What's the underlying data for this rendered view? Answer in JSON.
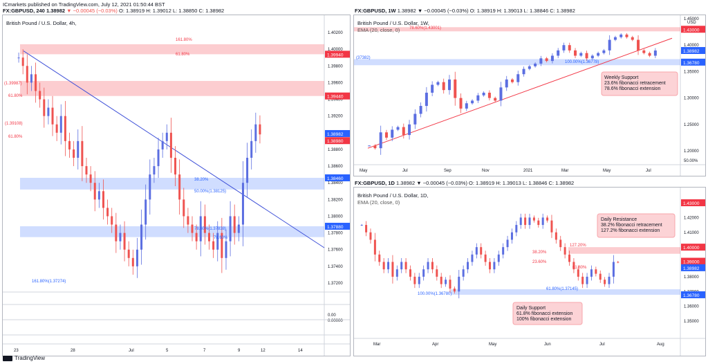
{
  "header": {
    "line1": "ICmarkets published on TradingView.com, July 12, 2021 01:50:44 BST",
    "symbol": "FX:GBPUSD, 240",
    "price": "1.38982",
    "change": "▼ −0.00045 (−0.03%)",
    "ohlc": "O: 1.38919  H: 1.39012  L: 1.38850  C: 1.38982"
  },
  "footer": {
    "brand": "TradingView"
  },
  "chart_data": [
    {
      "type": "candlestick",
      "symbol": "FX:GBPUSD, 240",
      "title": "British Pound / U.S. Dollar, 4h,",
      "currency": "",
      "yaxis_labels": [
        "1.40200",
        "1.40000",
        "1.39800",
        "1.39600",
        "1.39400",
        "1.39200",
        "1.39000",
        "1.38800",
        "1.38600",
        "1.38400",
        "1.38200",
        "1.38000",
        "1.37800",
        "1.37600",
        "1.37400",
        "1.37200",
        "0.00",
        "0.00000"
      ],
      "xaxis_labels": [
        "23",
        "28",
        "Jul",
        "5",
        "7",
        "9",
        "12",
        "14"
      ],
      "price_tags": [
        {
          "text": "1.39940",
          "color": "#f23645"
        },
        {
          "text": "1.39440",
          "color": "#f23645"
        },
        {
          "text": "1.38982",
          "color": "#2962ff"
        },
        {
          "text": "1.38980",
          "color": "#f23645"
        },
        {
          "text": "1.38460",
          "color": "#2962ff"
        },
        {
          "text": "1.37880",
          "color": "#2962ff"
        }
      ],
      "annotations": [
        "161.80%",
        "61.80%",
        "(1.39987)",
        "61.80%",
        "(1.39108)",
        "61.80%",
        "38.20%",
        "50.00%(1.38125)",
        "78.60%(1.37838)",
        "78.60%",
        "161.80%(1.37274)"
      ],
      "zones": [
        {
          "range": [
            1.3994,
            1.4006
          ],
          "kind": "resistance"
        },
        {
          "range": [
            1.3944,
            1.3962
          ],
          "kind": "resistance"
        },
        {
          "range": [
            1.3832,
            1.3846
          ],
          "kind": "support"
        },
        {
          "range": [
            1.3775,
            1.3788
          ],
          "kind": "support"
        }
      ],
      "trendline": {
        "from": 1.3998,
        "to": 1.3812
      }
    },
    {
      "type": "candlestick",
      "symbol": "FX:GBPUSD, 1W",
      "title": "British Pound / U.S. Dollar, 1W,",
      "indicator": "EMA (20, close, 0)",
      "header_ohlc": "1.38982 ▼ −0.00045 (−0.03%) O: 1.38919 H: 1.39013 L: 1.38846 C: 1.38982",
      "currency": "USD",
      "yaxis_labels": [
        "1.45000",
        "1.40000",
        "1.35000",
        "1.30000",
        "1.25000",
        "1.20000",
        "50.00%"
      ],
      "xaxis_labels": [
        "May",
        "Jul",
        "Sep",
        "Nov",
        "2021",
        "Mar",
        "May",
        "Jul"
      ],
      "price_tags": [
        {
          "text": "1.43000",
          "color": "#f23645"
        },
        {
          "text": "1.38982",
          "color": "#2962ff"
        },
        {
          "text": "1.36780",
          "color": "#2962ff"
        }
      ],
      "annotations": [
        "78.60%(1.43001)",
        "(37382)",
        "100.00%(1.36778)"
      ],
      "callout": [
        "Weekly Support",
        "23.6% fibonacci retracement",
        "78.6% fibonacci extension"
      ],
      "series_close": [
        1.21,
        1.205,
        1.235,
        1.225,
        1.24,
        1.245,
        1.23,
        1.25,
        1.27,
        1.285,
        1.31,
        1.325,
        1.33,
        1.315,
        1.335,
        1.3,
        1.28,
        1.29,
        1.295,
        1.305,
        1.31,
        1.3,
        1.295,
        1.32,
        1.335,
        1.33,
        1.345,
        1.355,
        1.36,
        1.365,
        1.375,
        1.37,
        1.38,
        1.39,
        1.4,
        1.39,
        1.38,
        1.385,
        1.375,
        1.38,
        1.385,
        1.39,
        1.41,
        1.415,
        1.42,
        1.415,
        1.41,
        1.39,
        1.385,
        1.38,
        1.3898
      ]
    },
    {
      "type": "candlestick",
      "symbol": "FX:GBPUSD, 1D",
      "title": "British Pound / U.S. Dollar, 1D,",
      "indicator": "EMA (20, close, 0)",
      "header_ohlc": "1.38982 ▼ −0.00045 (−0.03%) O: 1.38919 H: 1.39013 L: 1.38846 C: 1.38982",
      "yaxis_labels": [
        "1.43000",
        "1.42000",
        "1.41000",
        "1.40000",
        "1.39000",
        "1.38000",
        "1.37000",
        "1.36000",
        "1.35000"
      ],
      "xaxis_labels": [
        "Mar",
        "Apr",
        "May",
        "Jun",
        "Jul",
        "Aug"
      ],
      "price_tags": [
        {
          "text": "1.43000",
          "color": "#f23645"
        },
        {
          "text": "1.40000",
          "color": "#f23645"
        },
        {
          "text": "1.39000",
          "color": "#f23645"
        },
        {
          "text": "1.38982",
          "color": "#2962ff"
        },
        {
          "text": "1.36780",
          "color": "#2962ff"
        }
      ],
      "annotations": [
        "127.20%",
        "38.20%",
        "23.60%",
        "61.80%",
        "61.80%(1.37145)",
        "100.00%(1.36780)"
      ],
      "callouts": [
        [
          "Daily Resistance",
          "38.2% fibonacci retracement",
          "127.2% fibonacci extension"
        ],
        [
          "Daily Support",
          "61.8% fibonacci extension",
          "100% fibonacci extension"
        ]
      ],
      "series_close": [
        1.415,
        1.41,
        1.405,
        1.395,
        1.39,
        1.385,
        1.39,
        1.38,
        1.385,
        1.39,
        1.385,
        1.38,
        1.375,
        1.38,
        1.385,
        1.39,
        1.385,
        1.38,
        1.375,
        1.378,
        1.372,
        1.37,
        1.38,
        1.385,
        1.39,
        1.395,
        1.4,
        1.395,
        1.39,
        1.385,
        1.39,
        1.395,
        1.4,
        1.405,
        1.41,
        1.415,
        1.42,
        1.415,
        1.42,
        1.418,
        1.415,
        1.42,
        1.418,
        1.41,
        1.405,
        1.4,
        1.395,
        1.39,
        1.385,
        1.38,
        1.375,
        1.38,
        1.385,
        1.382,
        1.378,
        1.375,
        1.38,
        1.39,
        1.3898
      ]
    }
  ]
}
